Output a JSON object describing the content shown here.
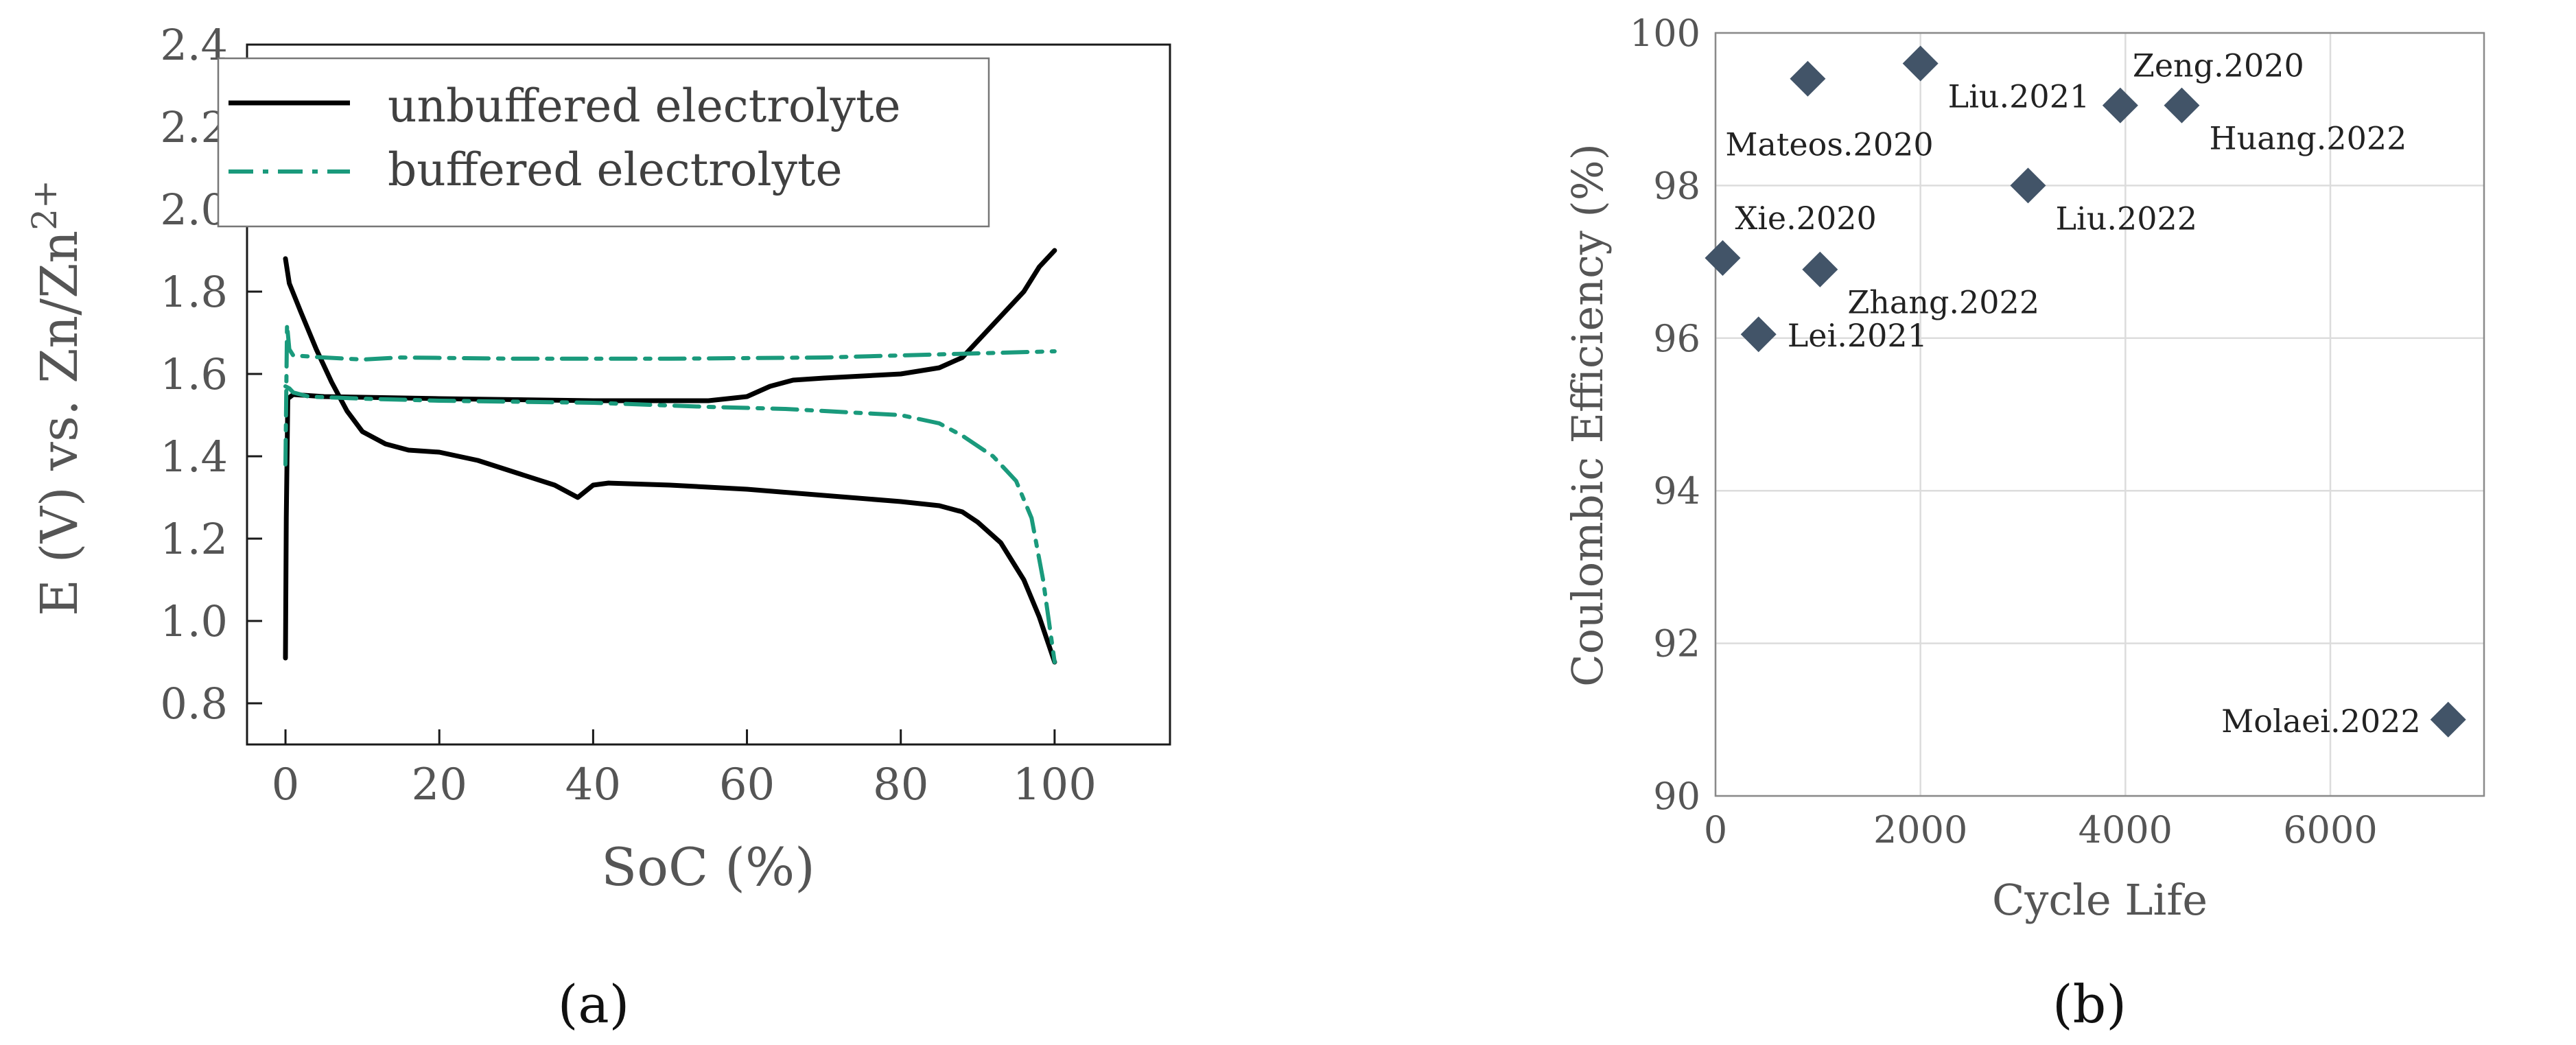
{
  "chart_data": [
    {
      "type": "line",
      "panel_label": "(a)",
      "xlabel": "SoC (%)",
      "ylabel": "E (V) vs. Zn/Zn",
      "ylabel_sup": "2+",
      "xlim": [
        -5,
        115
      ],
      "ylim": [
        0.7,
        2.4
      ],
      "xticks": [
        0,
        20,
        40,
        60,
        80,
        100
      ],
      "xtick_labels": [
        "0",
        "20",
        "40",
        "60",
        "80",
        "100"
      ],
      "yticks": [
        0.8,
        1.0,
        1.2,
        1.4,
        1.6,
        1.8,
        2.0,
        2.2,
        2.4
      ],
      "ytick_labels": [
        "0.8",
        "1.0",
        "1.2",
        "1.4",
        "1.6",
        "1.8",
        "2.0",
        "2.2",
        "2.4"
      ],
      "legend": [
        "unbuffered electrolyte",
        "buffered electrolyte"
      ],
      "legend_location": "top-left",
      "series": [
        {
          "name": "unbuffered electrolyte (charge)",
          "legend_index": 0,
          "color": "#000000",
          "dash": "solid",
          "points": [
            [
              0,
              0.91
            ],
            [
              0.1,
              1.25
            ],
            [
              0.3,
              1.54
            ],
            [
              1,
              1.55
            ],
            [
              5,
              1.545
            ],
            [
              20,
              1.54
            ],
            [
              40,
              1.535
            ],
            [
              55,
              1.535
            ],
            [
              60,
              1.545
            ],
            [
              63,
              1.57
            ],
            [
              66,
              1.585
            ],
            [
              70,
              1.59
            ],
            [
              80,
              1.6
            ],
            [
              85,
              1.615
            ],
            [
              88,
              1.64
            ],
            [
              92,
              1.72
            ],
            [
              96,
              1.8
            ],
            [
              98,
              1.86
            ],
            [
              100,
              1.9
            ]
          ]
        },
        {
          "name": "unbuffered electrolyte (discharge)",
          "legend_index": 0,
          "color": "#000000",
          "dash": "solid",
          "points": [
            [
              0,
              1.88
            ],
            [
              0.5,
              1.82
            ],
            [
              2,
              1.75
            ],
            [
              4,
              1.66
            ],
            [
              6,
              1.58
            ],
            [
              8,
              1.51
            ],
            [
              10,
              1.46
            ],
            [
              13,
              1.43
            ],
            [
              16,
              1.415
            ],
            [
              20,
              1.41
            ],
            [
              25,
              1.39
            ],
            [
              30,
              1.36
            ],
            [
              35,
              1.33
            ],
            [
              38,
              1.3
            ],
            [
              40,
              1.33
            ],
            [
              42,
              1.335
            ],
            [
              50,
              1.33
            ],
            [
              60,
              1.32
            ],
            [
              70,
              1.305
            ],
            [
              80,
              1.29
            ],
            [
              85,
              1.28
            ],
            [
              88,
              1.265
            ],
            [
              90,
              1.24
            ],
            [
              93,
              1.19
            ],
            [
              96,
              1.1
            ],
            [
              98,
              1.01
            ],
            [
              100,
              0.9
            ]
          ]
        },
        {
          "name": "buffered electrolyte (charge)",
          "legend_index": 1,
          "color": "#1a9a7c",
          "dash": "dashdot",
          "points": [
            [
              0,
              1.38
            ],
            [
              0.2,
              1.72
            ],
            [
              0.5,
              1.66
            ],
            [
              1,
              1.645
            ],
            [
              5,
              1.64
            ],
            [
              10,
              1.635
            ],
            [
              15,
              1.64
            ],
            [
              30,
              1.637
            ],
            [
              50,
              1.637
            ],
            [
              70,
              1.64
            ],
            [
              80,
              1.645
            ],
            [
              90,
              1.65
            ],
            [
              100,
              1.655
            ]
          ]
        },
        {
          "name": "buffered electrolyte (discharge)",
          "legend_index": 1,
          "color": "#1a9a7c",
          "dash": "dashdot",
          "points": [
            [
              0,
              1.57
            ],
            [
              0.5,
              1.565
            ],
            [
              1,
              1.555
            ],
            [
              3,
              1.545
            ],
            [
              10,
              1.54
            ],
            [
              20,
              1.535
            ],
            [
              40,
              1.53
            ],
            [
              55,
              1.52
            ],
            [
              65,
              1.515
            ],
            [
              75,
              1.505
            ],
            [
              80,
              1.5
            ],
            [
              85,
              1.48
            ],
            [
              88,
              1.45
            ],
            [
              92,
              1.4
            ],
            [
              95,
              1.34
            ],
            [
              97,
              1.25
            ],
            [
              98.5,
              1.1
            ],
            [
              100,
              0.9
            ]
          ]
        }
      ]
    },
    {
      "type": "scatter",
      "panel_label": "(b)",
      "xlabel": "Cycle Life",
      "ylabel": "Coulombic Efficiency (%)",
      "xlim": [
        0,
        7500
      ],
      "ylim": [
        90,
        100
      ],
      "xticks": [
        0,
        2000,
        4000,
        6000
      ],
      "xtick_labels": [
        "0",
        "2000",
        "4000",
        "6000"
      ],
      "yticks": [
        90,
        92,
        94,
        96,
        98,
        100
      ],
      "ytick_labels": [
        "90",
        "92",
        "94",
        "96",
        "98",
        "100"
      ],
      "grid": true,
      "marker": "diamond",
      "marker_color": "#425468",
      "points": [
        {
          "label": "Mateos.2020",
          "x": 900,
          "y": 99.4,
          "label_pos": "below-left"
        },
        {
          "label": "Liu.2021",
          "x": 2000,
          "y": 99.6,
          "label_pos": "below-right"
        },
        {
          "label": "Zeng.2020",
          "x": 3950,
          "y": 99.05,
          "label_pos": "above-right"
        },
        {
          "label": "Huang.2022",
          "x": 4550,
          "y": 99.05,
          "label_pos": "below-right"
        },
        {
          "label": "Liu.2022",
          "x": 3050,
          "y": 98.0,
          "label_pos": "below-right"
        },
        {
          "label": "Xie.2020",
          "x": 70,
          "y": 97.05,
          "label_pos": "above-right"
        },
        {
          "label": "Zhang.2022",
          "x": 1020,
          "y": 96.9,
          "label_pos": "below-right"
        },
        {
          "label": "Lei.2021",
          "x": 420,
          "y": 96.05,
          "label_pos": "right"
        },
        {
          "label": "Molaei.2022",
          "x": 7150,
          "y": 91.0,
          "label_pos": "left"
        }
      ]
    }
  ]
}
